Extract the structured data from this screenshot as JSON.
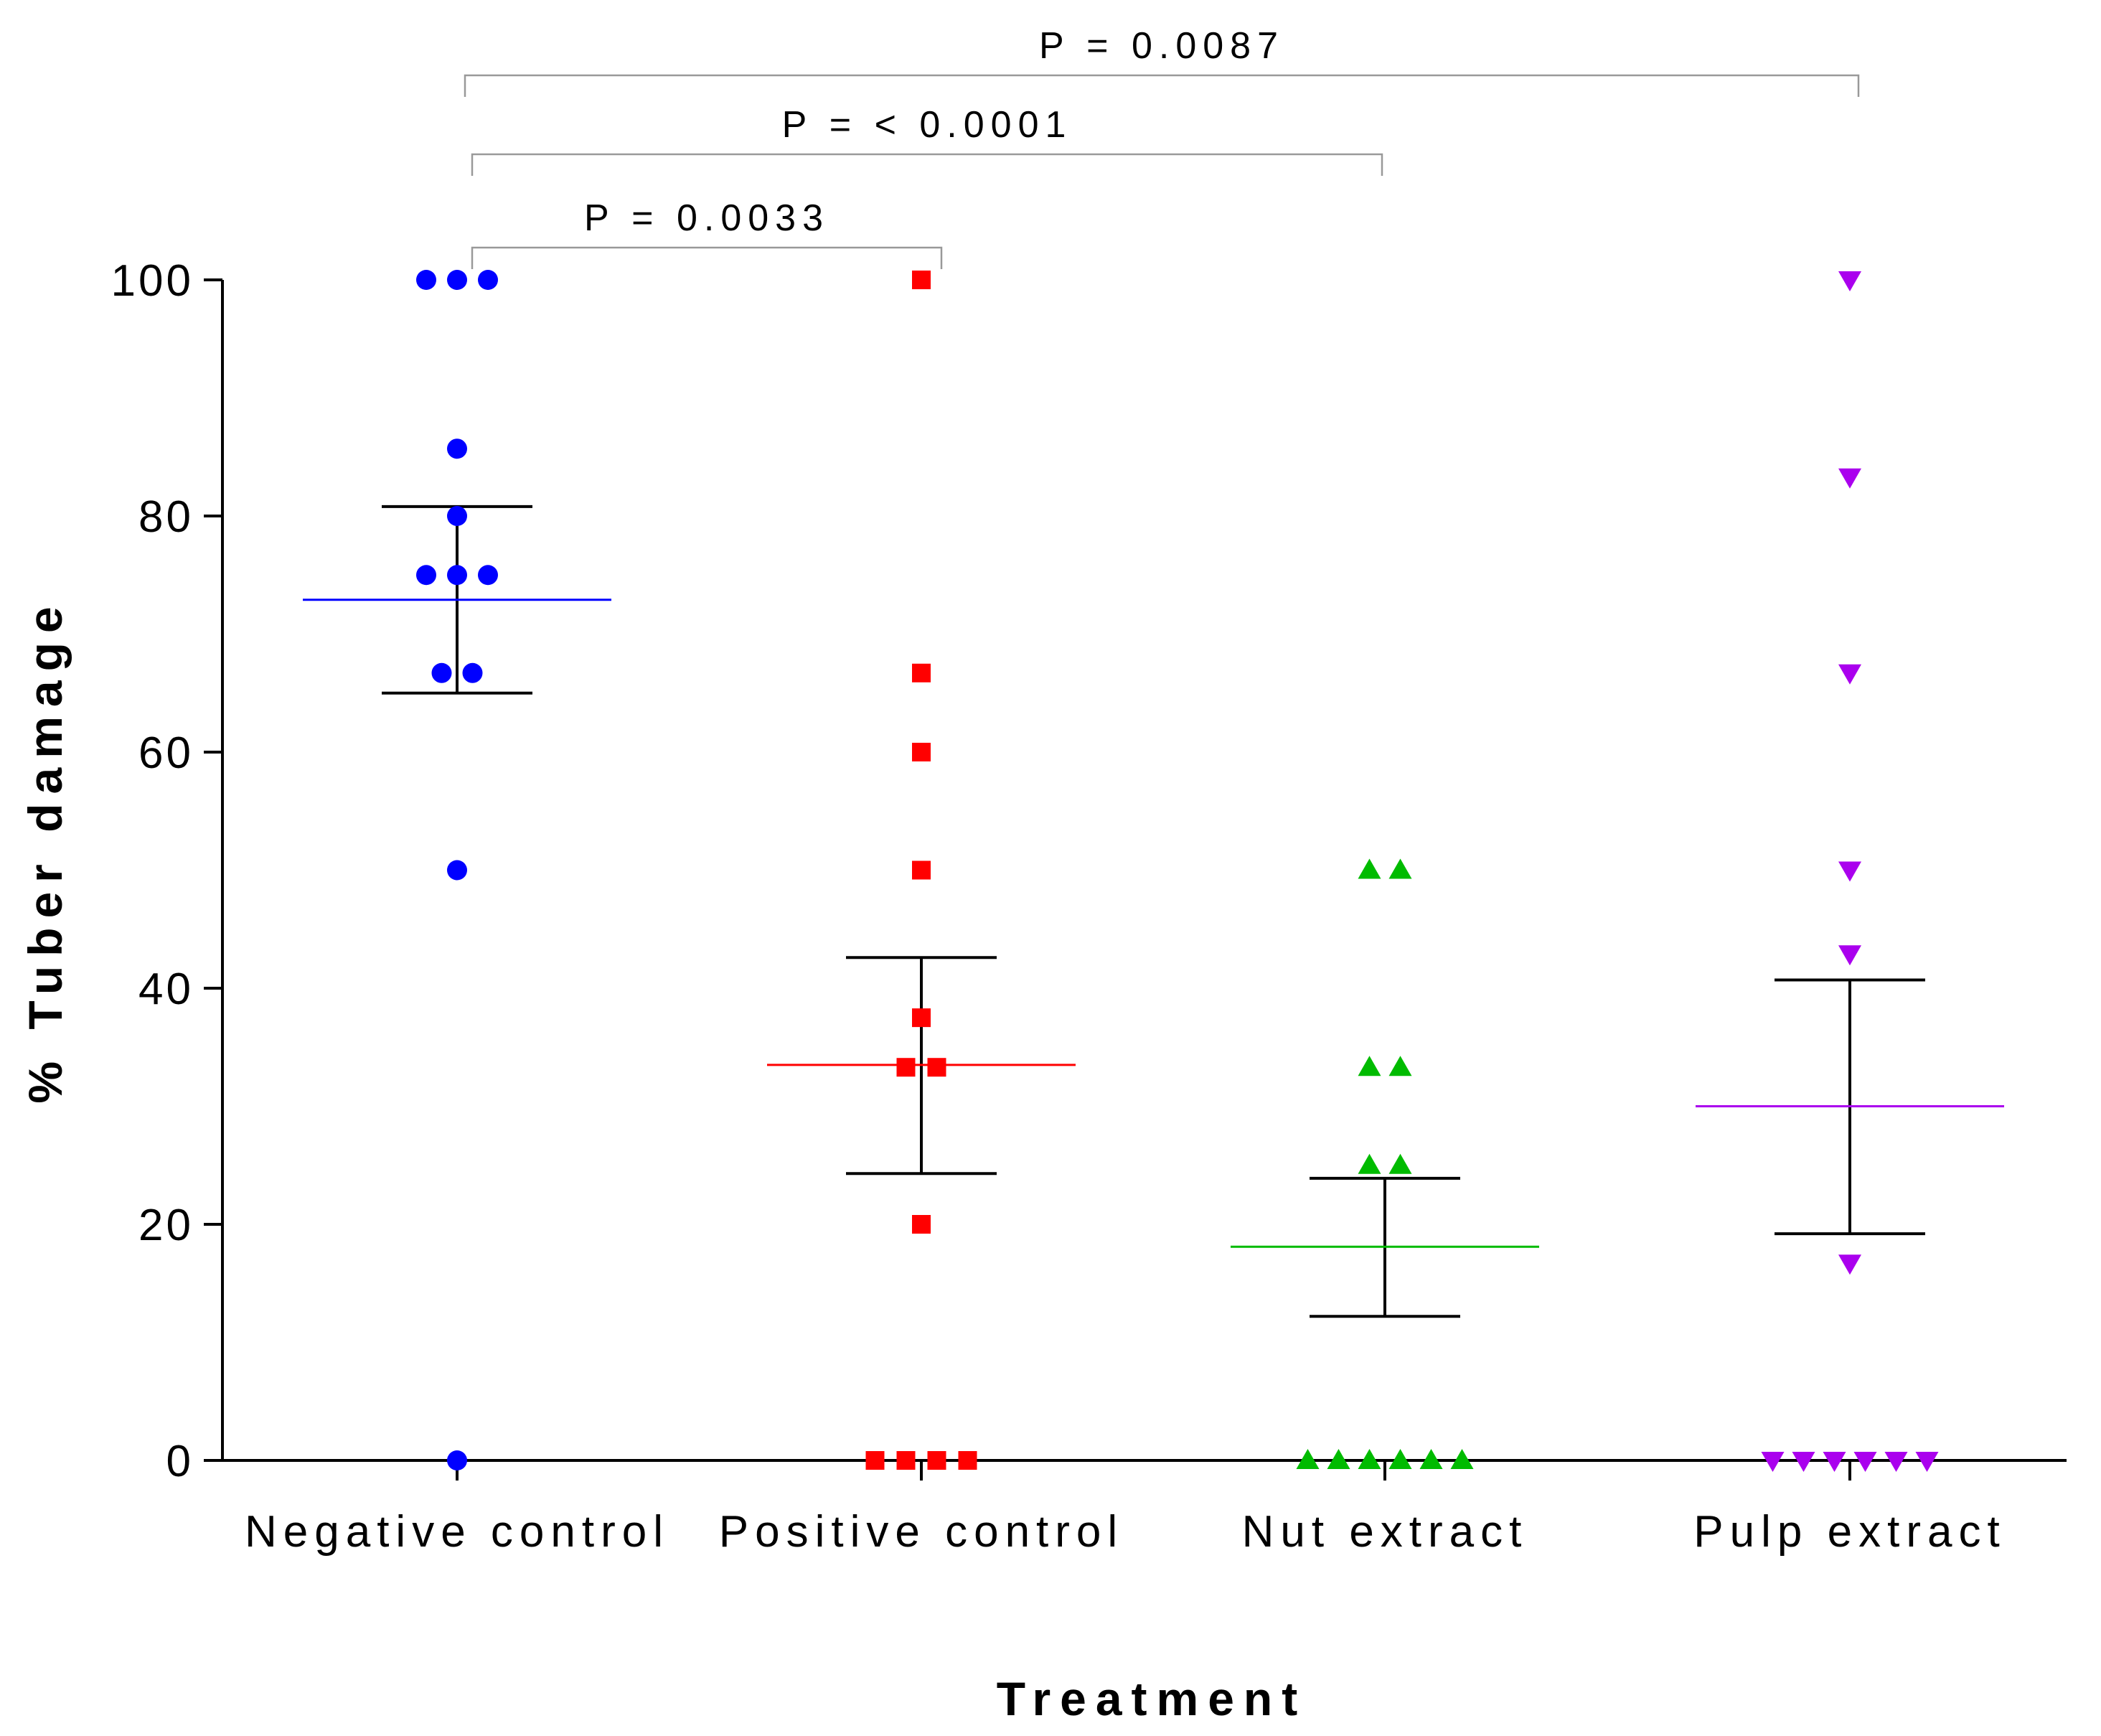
{
  "chart_data": {
    "type": "scatter",
    "xlabel": "Treatment",
    "ylabel": "% Tuber damage",
    "ylim": [
      0,
      100
    ],
    "yticks": [
      0,
      20,
      40,
      60,
      80,
      100
    ],
    "categories": [
      "Negative control",
      "Positive control",
      "Nut extract",
      "Pulp extract"
    ],
    "series": [
      {
        "name": "Negative control",
        "marker": "circle",
        "color": "#0000ff",
        "values": [
          100,
          100,
          100,
          85.7,
          80,
          75,
          75,
          75,
          66.7,
          66.7,
          50,
          0
        ],
        "offsets": [
          -1,
          0,
          1,
          0,
          0,
          -1,
          0,
          1,
          -0.5,
          0.5,
          0,
          0
        ],
        "mean": 72.9,
        "error_low": 65.0,
        "error_high": 80.8
      },
      {
        "name": "Positive control",
        "marker": "square",
        "color": "#ff0000",
        "values": [
          100,
          66.7,
          60,
          50,
          37.5,
          33.3,
          33.3,
          20,
          0,
          0,
          0,
          0
        ],
        "offsets": [
          0,
          0,
          0,
          0,
          0,
          -0.5,
          0.5,
          0,
          -1.5,
          -0.5,
          0.5,
          1.5
        ],
        "mean": 33.5,
        "error_low": 24.3,
        "error_high": 42.6
      },
      {
        "name": "Nut extract",
        "marker": "triangle-up",
        "color": "#00bb00",
        "values": [
          50,
          50,
          33.3,
          33.3,
          25,
          25,
          0,
          0,
          0,
          0,
          0,
          0
        ],
        "offsets": [
          -0.5,
          0.5,
          -0.5,
          0.5,
          -0.5,
          0.5,
          -2.5,
          -1.5,
          -0.5,
          0.5,
          1.5,
          2.5
        ],
        "mean": 18.1,
        "error_low": 12.2,
        "error_high": 23.9
      },
      {
        "name": "Pulp extract",
        "marker": "triangle-down",
        "color": "#aa00ee",
        "values": [
          100,
          83.3,
          66.7,
          50,
          42.9,
          16.7,
          0,
          0,
          0,
          0,
          0,
          0
        ],
        "offsets": [
          0,
          0,
          0,
          0,
          0,
          0,
          -2.5,
          -1.5,
          -0.5,
          0.5,
          1.5,
          2.5
        ],
        "mean": 30.0,
        "error_low": 19.2,
        "error_high": 40.7
      }
    ],
    "comparisons": [
      {
        "from": "Negative control",
        "to": "Positive control",
        "label": "P = 0.0033",
        "level": 0
      },
      {
        "from": "Negative control",
        "to": "Nut extract",
        "label": "P = < 0.0001",
        "level": 1
      },
      {
        "from": "Negative control",
        "to": "Pulp extract",
        "label": "P = 0.0087",
        "level": 2
      }
    ]
  }
}
